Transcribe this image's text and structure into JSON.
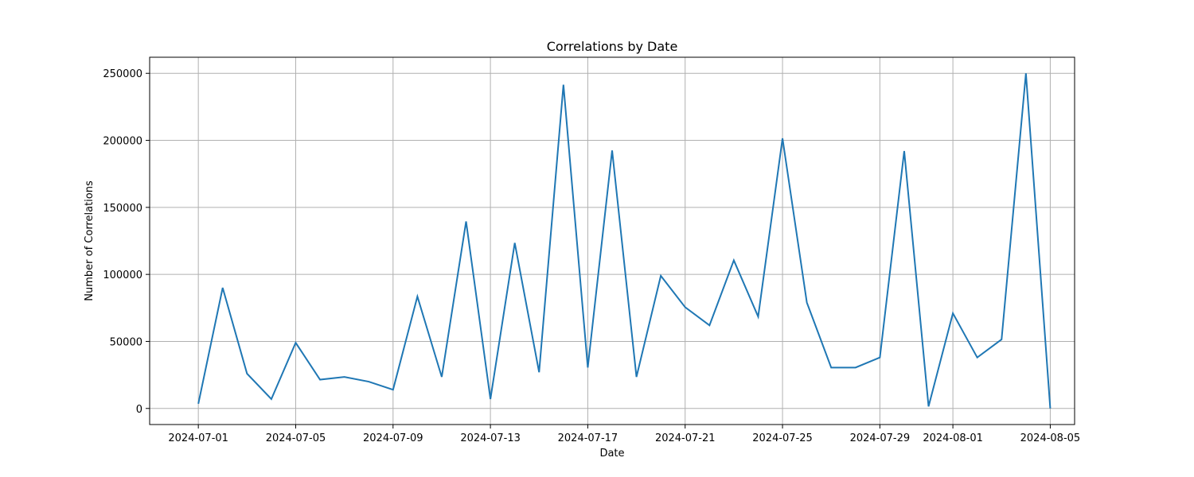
{
  "chart_data": {
    "type": "line",
    "title": "Correlations by Date",
    "xlabel": "Date",
    "ylabel": "Number of Correlations",
    "grid": true,
    "xlim": [
      "2024-06-29",
      "2024-08-06"
    ],
    "ylim": [
      -12000,
      262000
    ],
    "x_ticks": [
      "2024-07-01",
      "2024-07-05",
      "2024-07-09",
      "2024-07-13",
      "2024-07-17",
      "2024-07-21",
      "2024-07-25",
      "2024-07-29",
      "2024-08-01",
      "2024-08-05"
    ],
    "y_ticks": [
      0,
      50000,
      100000,
      150000,
      200000,
      250000
    ],
    "line_color": "#1f77b4",
    "series": [
      {
        "x": [
          "2024-07-01",
          "2024-07-02",
          "2024-07-03",
          "2024-07-04",
          "2024-07-05",
          "2024-07-06",
          "2024-07-07",
          "2024-07-08",
          "2024-07-09",
          "2024-07-10",
          "2024-07-11",
          "2024-07-12",
          "2024-07-13",
          "2024-07-14",
          "2024-07-15",
          "2024-07-16",
          "2024-07-17",
          "2024-07-18",
          "2024-07-19",
          "2024-07-20",
          "2024-07-21",
          "2024-07-22",
          "2024-07-23",
          "2024-07-24",
          "2024-07-25",
          "2024-07-26",
          "2024-07-27",
          "2024-07-28",
          "2024-07-29",
          "2024-07-30",
          "2024-07-31",
          "2024-08-01",
          "2024-08-02",
          "2024-08-03",
          "2024-08-04",
          "2024-08-05"
        ],
        "values": [
          3500,
          90000,
          26000,
          7000,
          49000,
          21500,
          23500,
          20000,
          14000,
          83500,
          23500,
          139500,
          7000,
          123500,
          27000,
          241500,
          30500,
          192500,
          23500,
          99000,
          75500,
          62000,
          110500,
          68500,
          201500,
          79000,
          30500,
          30500,
          38000,
          192000,
          1500,
          71000,
          38000,
          51500,
          250000,
          0
        ]
      }
    ]
  }
}
